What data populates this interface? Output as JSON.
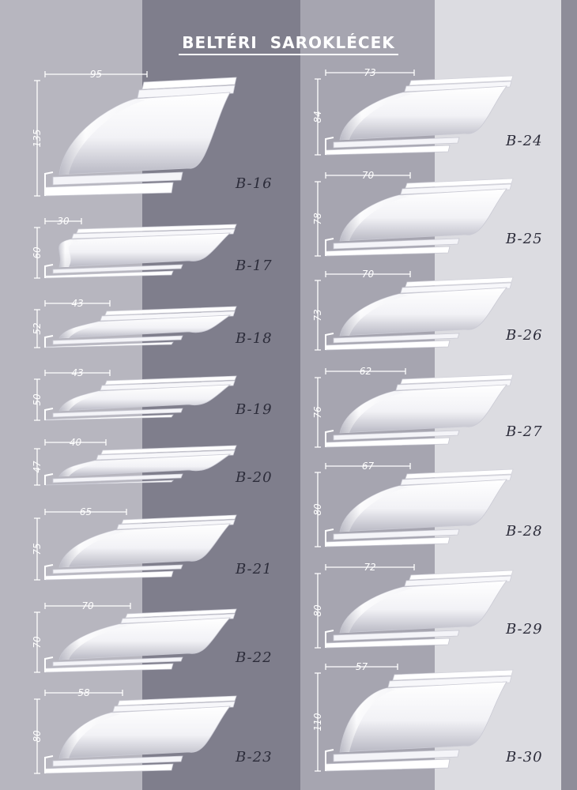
{
  "title": "BELTÉRI SAROKLÉCEK",
  "colors": {
    "background": "#8f8e99",
    "band_light": "#b7b6bf",
    "band_dark": "#7f7e8c",
    "band_pale": "#dcdce1",
    "profile_face": "#f2f2f6",
    "profile_shade": "#b9b9c4",
    "code_text": "#2c2c3a"
  },
  "profiles": [
    {
      "code": "B-16",
      "width_mm": "95",
      "height_mm": "135"
    },
    {
      "code": "B-17",
      "width_mm": "30",
      "height_mm": "60"
    },
    {
      "code": "B-18",
      "width_mm": "43",
      "height_mm": "52"
    },
    {
      "code": "B-19",
      "width_mm": "43",
      "height_mm": "50"
    },
    {
      "code": "B-20",
      "width_mm": "40",
      "height_mm": "47"
    },
    {
      "code": "B-21",
      "width_mm": "65",
      "height_mm": "75"
    },
    {
      "code": "B-22",
      "width_mm": "70",
      "height_mm": "70"
    },
    {
      "code": "B-23",
      "width_mm": "58",
      "height_mm": "80"
    },
    {
      "code": "B-24",
      "width_mm": "73",
      "height_mm": "84"
    },
    {
      "code": "B-25",
      "width_mm": "70",
      "height_mm": "78"
    },
    {
      "code": "B-26",
      "width_mm": "70",
      "height_mm": "73"
    },
    {
      "code": "B-27",
      "width_mm": "62",
      "height_mm": "76"
    },
    {
      "code": "B-28",
      "width_mm": "67",
      "height_mm": "80"
    },
    {
      "code": "B-29",
      "width_mm": "72",
      "height_mm": "80"
    },
    {
      "code": "B-30",
      "width_mm": "57",
      "height_mm": "110"
    }
  ]
}
